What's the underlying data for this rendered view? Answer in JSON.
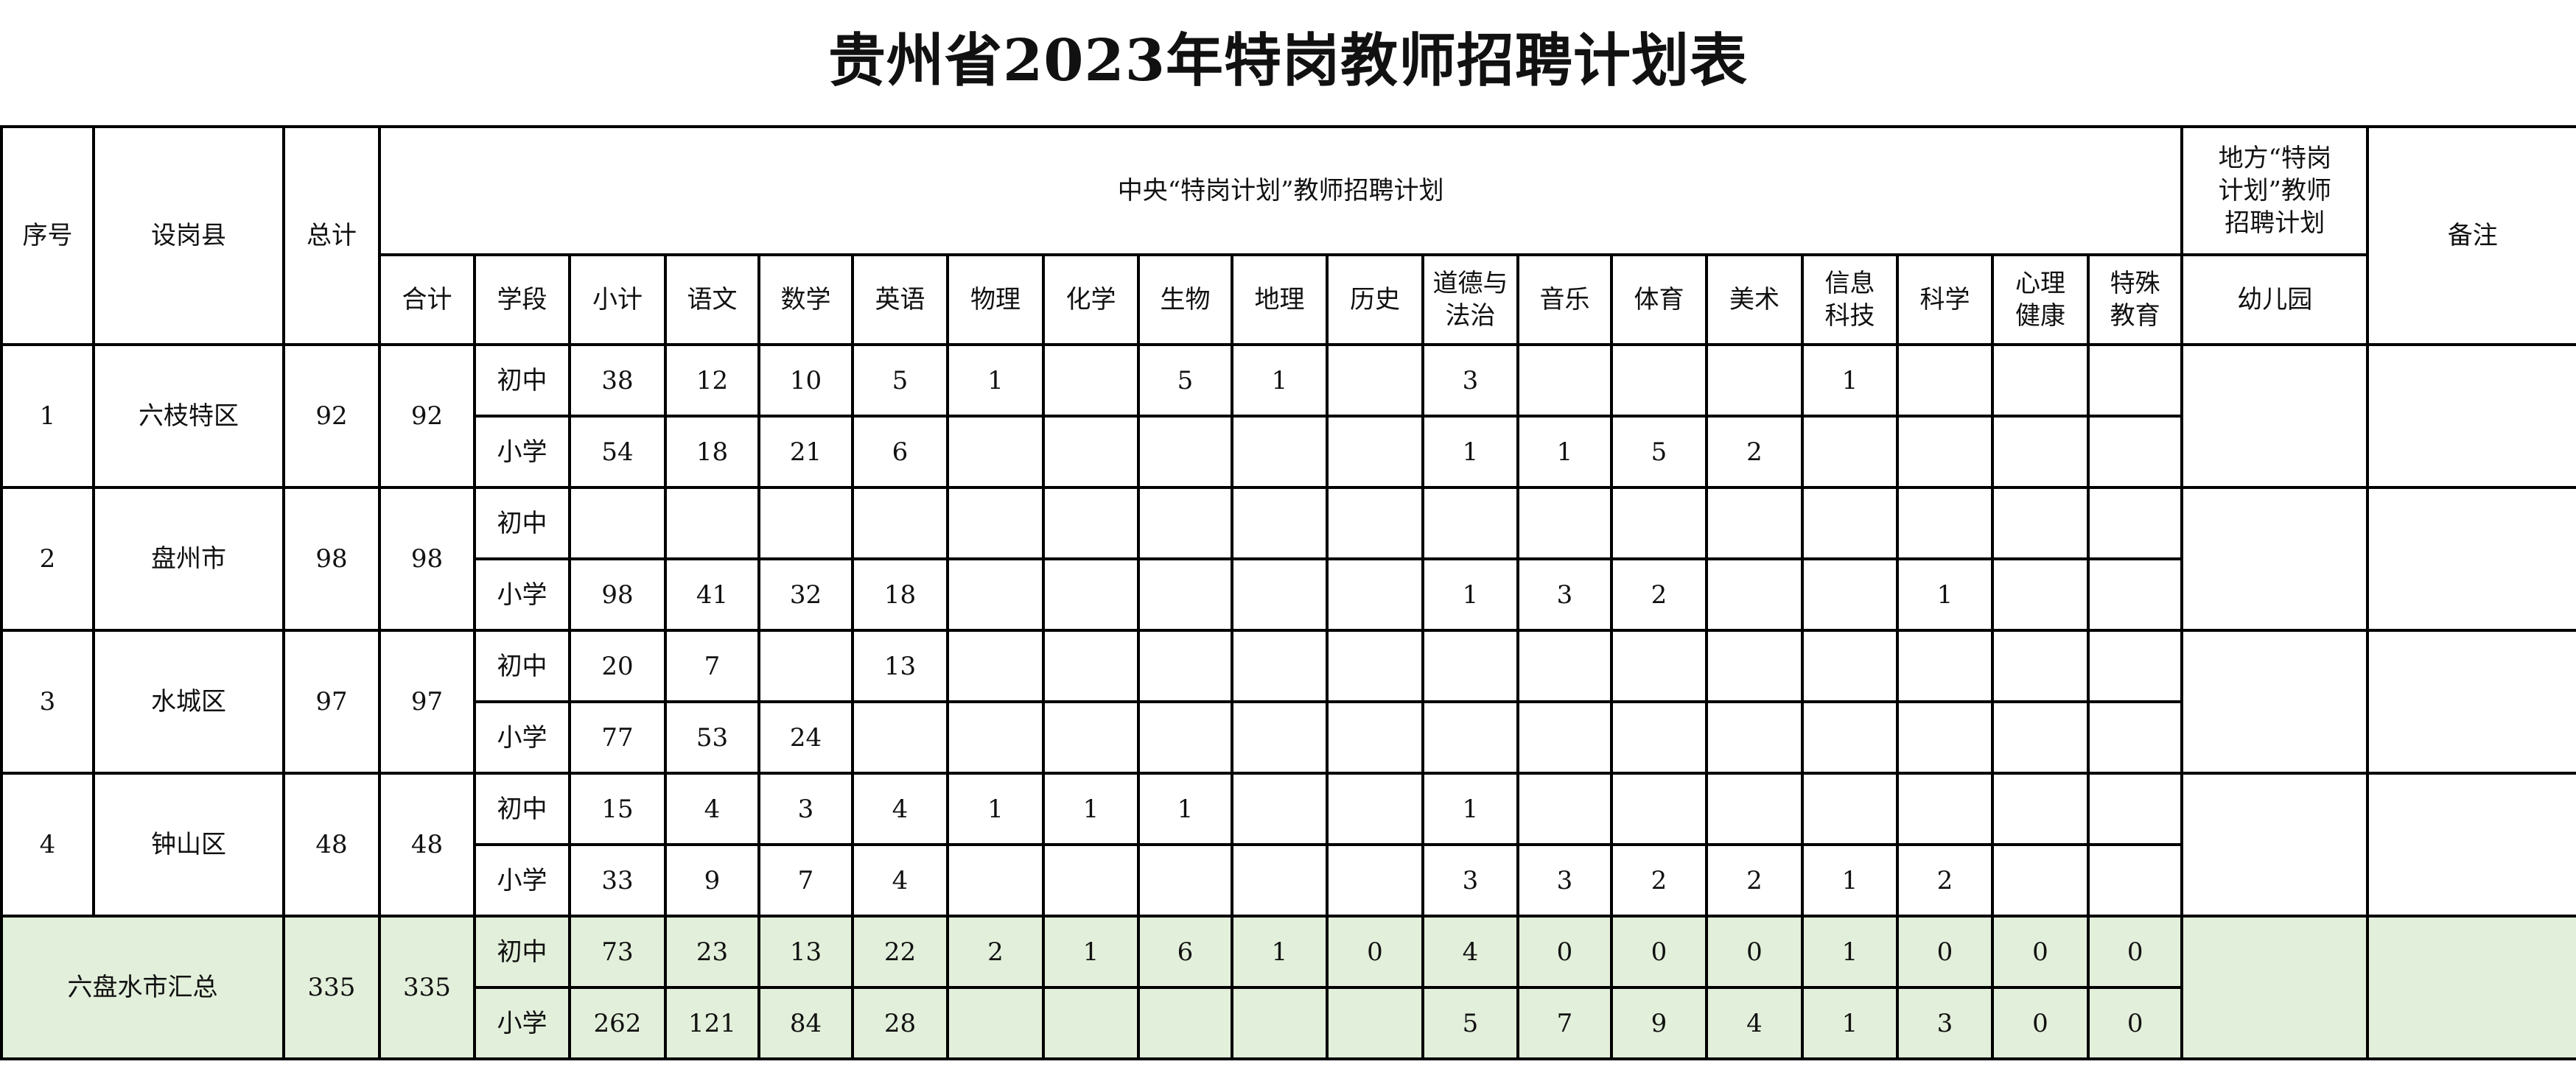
{
  "title": "贵州省2023年特岗教师招聘计划表",
  "header": {
    "seq": "序号",
    "county": "设岗县",
    "total": "总计",
    "central_plan": "中央“特岗计划”教师招聘计划",
    "local_plan": "地方“特岗\n计划”教师\n招聘计划",
    "remarks": "备注",
    "sum": "合计",
    "stage": "学段",
    "subtotal": "小计",
    "subjects": [
      "语文",
      "数学",
      "英语",
      "物理",
      "化学",
      "生物",
      "地理",
      "历史",
      "道德与\n法治",
      "音乐",
      "体育",
      "美术",
      "信息\n科技",
      "科学",
      "心理\n健康",
      "特殊\n教育"
    ],
    "kindergarten": "幼儿园"
  },
  "rows": [
    {
      "seq": "1",
      "county": "六枝特区",
      "total": "92",
      "sum": "92",
      "stages": [
        {
          "stage": "初中",
          "values": [
            "38",
            "12",
            "10",
            "5",
            "1",
            "",
            "5",
            "1",
            "",
            "3",
            "",
            "",
            "",
            "1",
            "",
            "",
            ""
          ]
        },
        {
          "stage": "小学",
          "values": [
            "54",
            "18",
            "21",
            "6",
            "",
            "",
            "",
            "",
            "",
            "1",
            "1",
            "5",
            "2",
            "",
            "",
            "",
            ""
          ]
        }
      ]
    },
    {
      "seq": "2",
      "county": "盘州市",
      "total": "98",
      "sum": "98",
      "stages": [
        {
          "stage": "初中",
          "values": [
            "",
            "",
            "",
            "",
            "",
            "",
            "",
            "",
            "",
            "",
            "",
            "",
            "",
            "",
            "",
            "",
            ""
          ]
        },
        {
          "stage": "小学",
          "values": [
            "98",
            "41",
            "32",
            "18",
            "",
            "",
            "",
            "",
            "",
            "1",
            "3",
            "2",
            "",
            "",
            "1",
            "",
            ""
          ]
        }
      ]
    },
    {
      "seq": "3",
      "county": "水城区",
      "total": "97",
      "sum": "97",
      "stages": [
        {
          "stage": "初中",
          "values": [
            "20",
            "7",
            "",
            "13",
            "",
            "",
            "",
            "",
            "",
            "",
            "",
            "",
            "",
            "",
            "",
            "",
            ""
          ]
        },
        {
          "stage": "小学",
          "values": [
            "77",
            "53",
            "24",
            "",
            "",
            "",
            "",
            "",
            "",
            "",
            "",
            "",
            "",
            "",
            "",
            "",
            ""
          ]
        }
      ]
    },
    {
      "seq": "4",
      "county": "钟山区",
      "total": "48",
      "sum": "48",
      "stages": [
        {
          "stage": "初中",
          "values": [
            "15",
            "4",
            "3",
            "4",
            "1",
            "1",
            "1",
            "",
            "",
            "1",
            "",
            "",
            "",
            "",
            "",
            "",
            ""
          ]
        },
        {
          "stage": "小学",
          "values": [
            "33",
            "9",
            "7",
            "4",
            "",
            "",
            "",
            "",
            "",
            "3",
            "3",
            "2",
            "2",
            "1",
            "2",
            "",
            ""
          ]
        }
      ]
    }
  ],
  "summary": {
    "label": "六盘水市汇总",
    "total": "335",
    "sum": "335",
    "stages": [
      {
        "stage": "初中",
        "values": [
          "73",
          "23",
          "13",
          "22",
          "2",
          "1",
          "6",
          "1",
          "0",
          "4",
          "0",
          "0",
          "0",
          "1",
          "0",
          "0",
          "0"
        ]
      },
      {
        "stage": "小学",
        "values": [
          "262",
          "121",
          "84",
          "28",
          "",
          "",
          "",
          "",
          "",
          "5",
          "7",
          "9",
          "4",
          "1",
          "3",
          "0",
          "0"
        ]
      }
    ]
  },
  "colors": {
    "summary_bg": "#e2efda",
    "border": "#000000"
  }
}
